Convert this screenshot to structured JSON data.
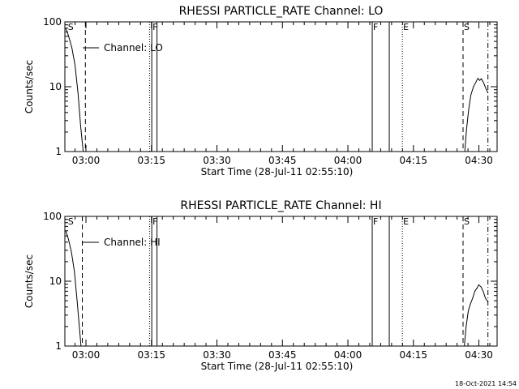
{
  "chart_data": [
    {
      "type": "line",
      "title": "RHESSI PARTICLE_RATE Channel: LO",
      "xlabel": "Start Time (28-Jul-11 02:55:10)",
      "ylabel": "Counts/sec",
      "y_scale": "log",
      "ylim": [
        1,
        100
      ],
      "xlim_minutes_after_start": [
        0,
        99.0
      ],
      "x_tick_labels": [
        "03:00",
        "03:15",
        "03:30",
        "03:45",
        "04:00",
        "04:15",
        "04:30"
      ],
      "x_tick_minutes": [
        4.83,
        19.83,
        34.83,
        49.83,
        64.83,
        79.83,
        94.83
      ],
      "y_tick_labels": [
        "1",
        "10",
        "100"
      ],
      "y_tick_values": [
        1,
        10,
        100
      ],
      "legend": {
        "label": "Channel: LO",
        "placement": "top-left"
      },
      "series": [
        {
          "segments": [
            {
              "x": [
                0.2,
                0.8,
                1.6,
                2.3,
                3.0,
                3.6,
                4.2
              ],
              "y": [
                80,
                62,
                40,
                22,
                8,
                2.5,
                1
              ]
            },
            {
              "x": [
                91.6,
                92.0,
                92.5,
                93.0,
                93.6,
                94.2,
                94.6,
                95.0,
                95.4,
                95.9,
                96.4,
                96.9
              ],
              "y": [
                1,
                2.2,
                4.5,
                7.5,
                10,
                12,
                13.5,
                12.5,
                13.3,
                11.5,
                9.5,
                8
              ]
            }
          ]
        }
      ],
      "markers": [
        {
          "label": "S",
          "x": 0.5,
          "style": "none"
        },
        {
          "label": "",
          "x": 4.7,
          "style": "dashed"
        },
        {
          "label": "",
          "x": 19.4,
          "style": "dotted"
        },
        {
          "label": "F",
          "x": 19.9,
          "style": "solid"
        },
        {
          "label": "",
          "x": 21.1,
          "style": "solid"
        },
        {
          "label": "F",
          "x": 70.4,
          "style": "solid"
        },
        {
          "label": "",
          "x": 74.3,
          "style": "solid"
        },
        {
          "label": "E",
          "x": 77.3,
          "style": "dotted"
        },
        {
          "label": "S",
          "x": 91.2,
          "style": "dashed"
        },
        {
          "label": "",
          "x": 96.9,
          "style": "dashdot"
        }
      ]
    },
    {
      "type": "line",
      "title": "RHESSI PARTICLE_RATE Channel: HI",
      "xlabel": "Start Time (28-Jul-11 02:55:10)",
      "ylabel": "Counts/sec",
      "y_scale": "log",
      "ylim": [
        1,
        100
      ],
      "xlim_minutes_after_start": [
        0,
        99.0
      ],
      "x_tick_labels": [
        "03:00",
        "03:15",
        "03:30",
        "03:45",
        "04:00",
        "04:15",
        "04:30"
      ],
      "x_tick_minutes": [
        4.83,
        19.83,
        34.83,
        49.83,
        64.83,
        79.83,
        94.83
      ],
      "y_tick_labels": [
        "1",
        "10",
        "100"
      ],
      "y_tick_values": [
        1,
        10,
        100
      ],
      "legend": {
        "label": "Channel: HI",
        "placement": "top-left"
      },
      "series": [
        {
          "segments": [
            {
              "x": [
                0.2,
                0.8,
                1.5,
                2.2,
                2.8,
                3.3,
                3.7
              ],
              "y": [
                60,
                45,
                28,
                14,
                5,
                2,
                1
              ]
            },
            {
              "x": [
                91.5,
                91.9,
                92.4,
                92.9,
                93.4,
                93.9,
                94.4,
                94.8,
                95.3,
                95.8,
                96.3,
                96.9
              ],
              "y": [
                1,
                2,
                3.5,
                4.5,
                5.5,
                7,
                7.8,
                8.8,
                8.2,
                7,
                5.5,
                4.8
              ]
            }
          ]
        }
      ],
      "markers": [
        {
          "label": "S",
          "x": 0.5,
          "style": "none"
        },
        {
          "label": "",
          "x": 4.0,
          "style": "dashed"
        },
        {
          "label": "",
          "x": 19.4,
          "style": "dotted"
        },
        {
          "label": "F",
          "x": 19.9,
          "style": "solid"
        },
        {
          "label": "",
          "x": 21.1,
          "style": "solid"
        },
        {
          "label": "F",
          "x": 70.4,
          "style": "solid"
        },
        {
          "label": "",
          "x": 74.3,
          "style": "solid"
        },
        {
          "label": "E",
          "x": 77.3,
          "style": "dotted"
        },
        {
          "label": "S",
          "x": 91.2,
          "style": "dashed"
        },
        {
          "label": "",
          "x": 96.9,
          "style": "dashdot"
        }
      ]
    }
  ],
  "footer": {
    "timestamp": "18-Oct-2021 14:54"
  }
}
